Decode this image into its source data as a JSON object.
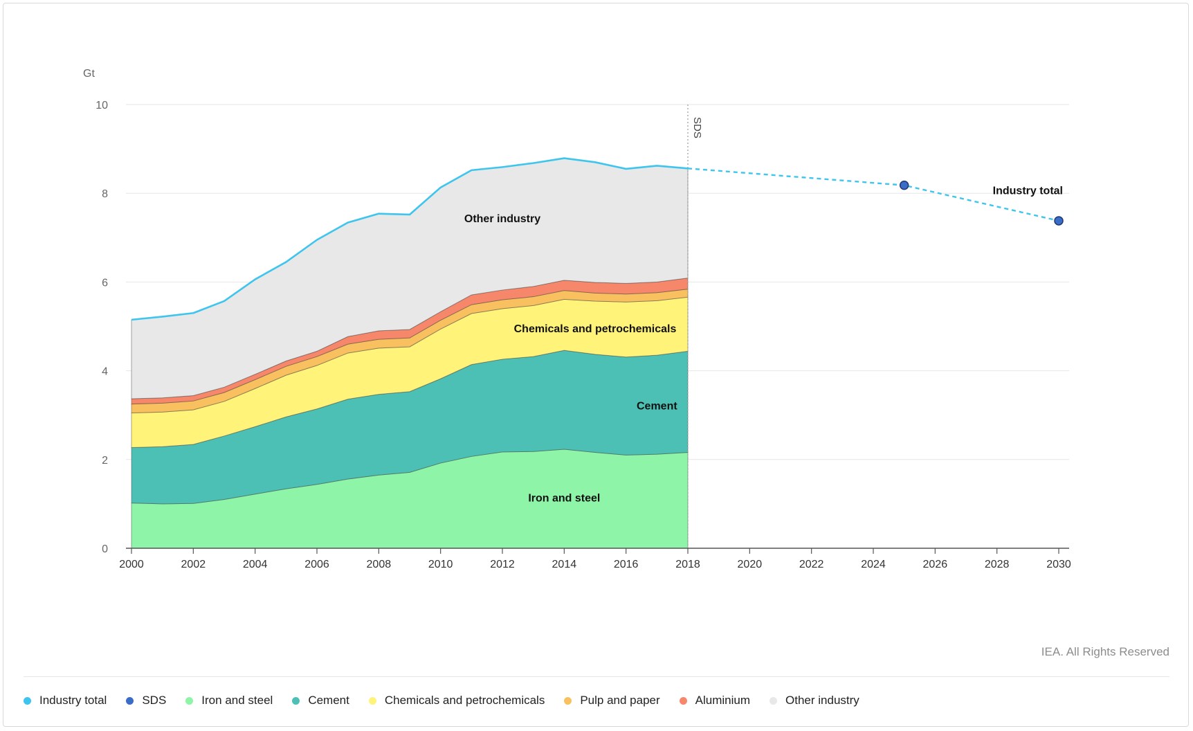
{
  "colors": {
    "industry_total": "#3dc5ee",
    "sds": "#3a6cc8",
    "iron_and_steel": "#8ef5a8",
    "cement": "#4cc0b4",
    "chemicals": "#fff37a",
    "pulp_and_paper": "#f9c060",
    "aluminium": "#f7876a",
    "other_industry": "#e8e8e8"
  },
  "chart_data": {
    "type": "area",
    "ylabel": "Gt",
    "ylim": [
      0,
      10
    ],
    "yticks": [
      "0",
      "2",
      "4",
      "6",
      "8",
      "10"
    ],
    "xlim": [
      2000,
      2030
    ],
    "xticks": [
      "2000",
      "2002",
      "2004",
      "2006",
      "2008",
      "2010",
      "2012",
      "2014",
      "2016",
      "2018",
      "2020",
      "2022",
      "2024",
      "2026",
      "2028",
      "2030"
    ],
    "x": [
      2000,
      2001,
      2002,
      2003,
      2004,
      2005,
      2006,
      2007,
      2008,
      2009,
      2010,
      2011,
      2012,
      2013,
      2014,
      2015,
      2016,
      2017,
      2018
    ],
    "series": [
      {
        "name": "Iron and steel",
        "color": "#8ef5a8",
        "values": [
          1.02,
          1.0,
          1.01,
          1.1,
          1.22,
          1.34,
          1.44,
          1.56,
          1.65,
          1.71,
          1.92,
          2.07,
          2.17,
          2.18,
          2.23,
          2.16,
          2.1,
          2.12,
          2.16
        ]
      },
      {
        "name": "Cement",
        "color": "#4cc0b4",
        "values": [
          1.25,
          1.29,
          1.33,
          1.43,
          1.52,
          1.62,
          1.7,
          1.8,
          1.82,
          1.82,
          1.9,
          2.07,
          2.09,
          2.14,
          2.23,
          2.21,
          2.21,
          2.23,
          2.28
        ]
      },
      {
        "name": "Chemicals and petrochemicals",
        "color": "#fff37a",
        "values": [
          0.78,
          0.78,
          0.78,
          0.78,
          0.86,
          0.94,
          0.98,
          1.04,
          1.04,
          1.01,
          1.12,
          1.15,
          1.14,
          1.15,
          1.15,
          1.2,
          1.24,
          1.23,
          1.22
        ]
      },
      {
        "name": "Pulp and paper",
        "color": "#f9c060",
        "values": [
          0.2,
          0.2,
          0.2,
          0.2,
          0.2,
          0.2,
          0.2,
          0.2,
          0.2,
          0.2,
          0.2,
          0.2,
          0.2,
          0.2,
          0.2,
          0.18,
          0.18,
          0.18,
          0.18
        ]
      },
      {
        "name": "Aluminium",
        "color": "#f7876a",
        "values": [
          0.12,
          0.12,
          0.12,
          0.12,
          0.12,
          0.12,
          0.12,
          0.17,
          0.19,
          0.19,
          0.19,
          0.22,
          0.22,
          0.23,
          0.23,
          0.24,
          0.24,
          0.24,
          0.25
        ]
      },
      {
        "name": "Other industry",
        "color": "#e8e8e8",
        "values": [
          1.78,
          1.83,
          1.86,
          1.94,
          2.14,
          2.23,
          2.51,
          2.57,
          2.64,
          2.59,
          2.8,
          2.81,
          2.77,
          2.78,
          2.75,
          2.71,
          2.58,
          2.62,
          2.47
        ]
      }
    ],
    "industry_total": {
      "name": "Industry total",
      "color": "#3dc5ee",
      "x": [
        2000,
        2001,
        2002,
        2003,
        2004,
        2005,
        2006,
        2007,
        2008,
        2009,
        2010,
        2011,
        2012,
        2013,
        2014,
        2015,
        2016,
        2017,
        2018
      ],
      "values": [
        5.15,
        5.22,
        5.3,
        5.57,
        6.06,
        6.45,
        6.95,
        7.34,
        7.54,
        7.52,
        8.13,
        8.52,
        8.59,
        8.68,
        8.79,
        8.7,
        8.55,
        8.62,
        8.56
      ]
    },
    "sds": {
      "name": "SDS",
      "color": "#3a6cc8",
      "x": [
        2018,
        2025,
        2030
      ],
      "values": [
        8.56,
        8.18,
        7.38
      ],
      "markers": [
        2025,
        2030
      ]
    },
    "divider": {
      "x": 2018,
      "label": "SDS"
    },
    "annotations": [
      {
        "text": "Other industry",
        "x": 2012,
        "y": 7.35
      },
      {
        "text": "Chemicals and petrochemicals",
        "x": 2015,
        "y": 4.87
      },
      {
        "text": "Cement",
        "x": 2017,
        "y": 3.13
      },
      {
        "text": "Iron and steel",
        "x": 2014,
        "y": 1.05
      },
      {
        "text": "Industry total",
        "x": 2029,
        "y": 7.98
      }
    ]
  },
  "credit": "IEA. All Rights Reserved",
  "legend": [
    {
      "label": "Industry total",
      "color": "#3dc5ee"
    },
    {
      "label": "SDS",
      "color": "#3a6cc8"
    },
    {
      "label": "Iron and steel",
      "color": "#8ef5a8"
    },
    {
      "label": "Cement",
      "color": "#4cc0b4"
    },
    {
      "label": "Chemicals and petrochemicals",
      "color": "#fff37a"
    },
    {
      "label": "Pulp and paper",
      "color": "#f9c060"
    },
    {
      "label": "Aluminium",
      "color": "#f7876a"
    },
    {
      "label": "Other industry",
      "color": "#e8e8e8"
    }
  ]
}
